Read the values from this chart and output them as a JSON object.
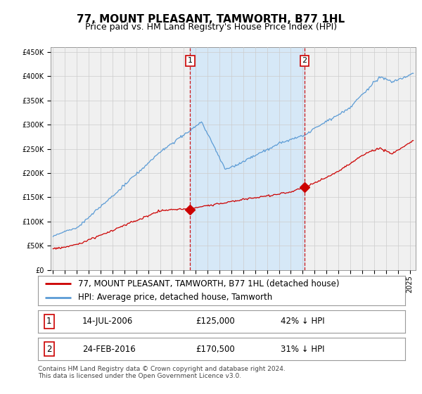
{
  "title": "77, MOUNT PLEASANT, TAMWORTH, B77 1HL",
  "subtitle": "Price paid vs. HM Land Registry's House Price Index (HPI)",
  "ylabel_ticks": [
    0,
    50000,
    100000,
    150000,
    200000,
    250000,
    300000,
    350000,
    400000,
    450000
  ],
  "ylabel_labels": [
    "£0",
    "£50K",
    "£100K",
    "£150K",
    "£200K",
    "£250K",
    "£300K",
    "£350K",
    "£400K",
    "£450K"
  ],
  "ylim": [
    0,
    460000
  ],
  "xlim_start": 1994.8,
  "xlim_end": 2025.5,
  "xtick_years": [
    1995,
    1996,
    1997,
    1998,
    1999,
    2000,
    2001,
    2002,
    2003,
    2004,
    2005,
    2006,
    2007,
    2008,
    2009,
    2010,
    2011,
    2012,
    2013,
    2014,
    2015,
    2016,
    2017,
    2018,
    2019,
    2020,
    2021,
    2022,
    2023,
    2024,
    2025
  ],
  "sale1_x": 2006.54,
  "sale1_y": 125000,
  "sale2_x": 2016.15,
  "sale2_y": 170500,
  "line_red_color": "#cc0000",
  "line_blue_color": "#5b9bd5",
  "shade_color": "#d6e8f7",
  "vline_color": "#cc0000",
  "grid_color": "#cccccc",
  "bg_color": "#ffffff",
  "plot_bg_color": "#f0f0f0",
  "legend_label_red": "77, MOUNT PLEASANT, TAMWORTH, B77 1HL (detached house)",
  "legend_label_blue": "HPI: Average price, detached house, Tamworth",
  "sale1_date": "14-JUL-2006",
  "sale1_price": "£125,000",
  "sale1_hpi": "42% ↓ HPI",
  "sale2_date": "24-FEB-2016",
  "sale2_price": "£170,500",
  "sale2_hpi": "31% ↓ HPI",
  "footnote": "Contains HM Land Registry data © Crown copyright and database right 2024.\nThis data is licensed under the Open Government Licence v3.0.",
  "title_fontsize": 11,
  "subtitle_fontsize": 9,
  "tick_fontsize": 7,
  "legend_fontsize": 8.5
}
